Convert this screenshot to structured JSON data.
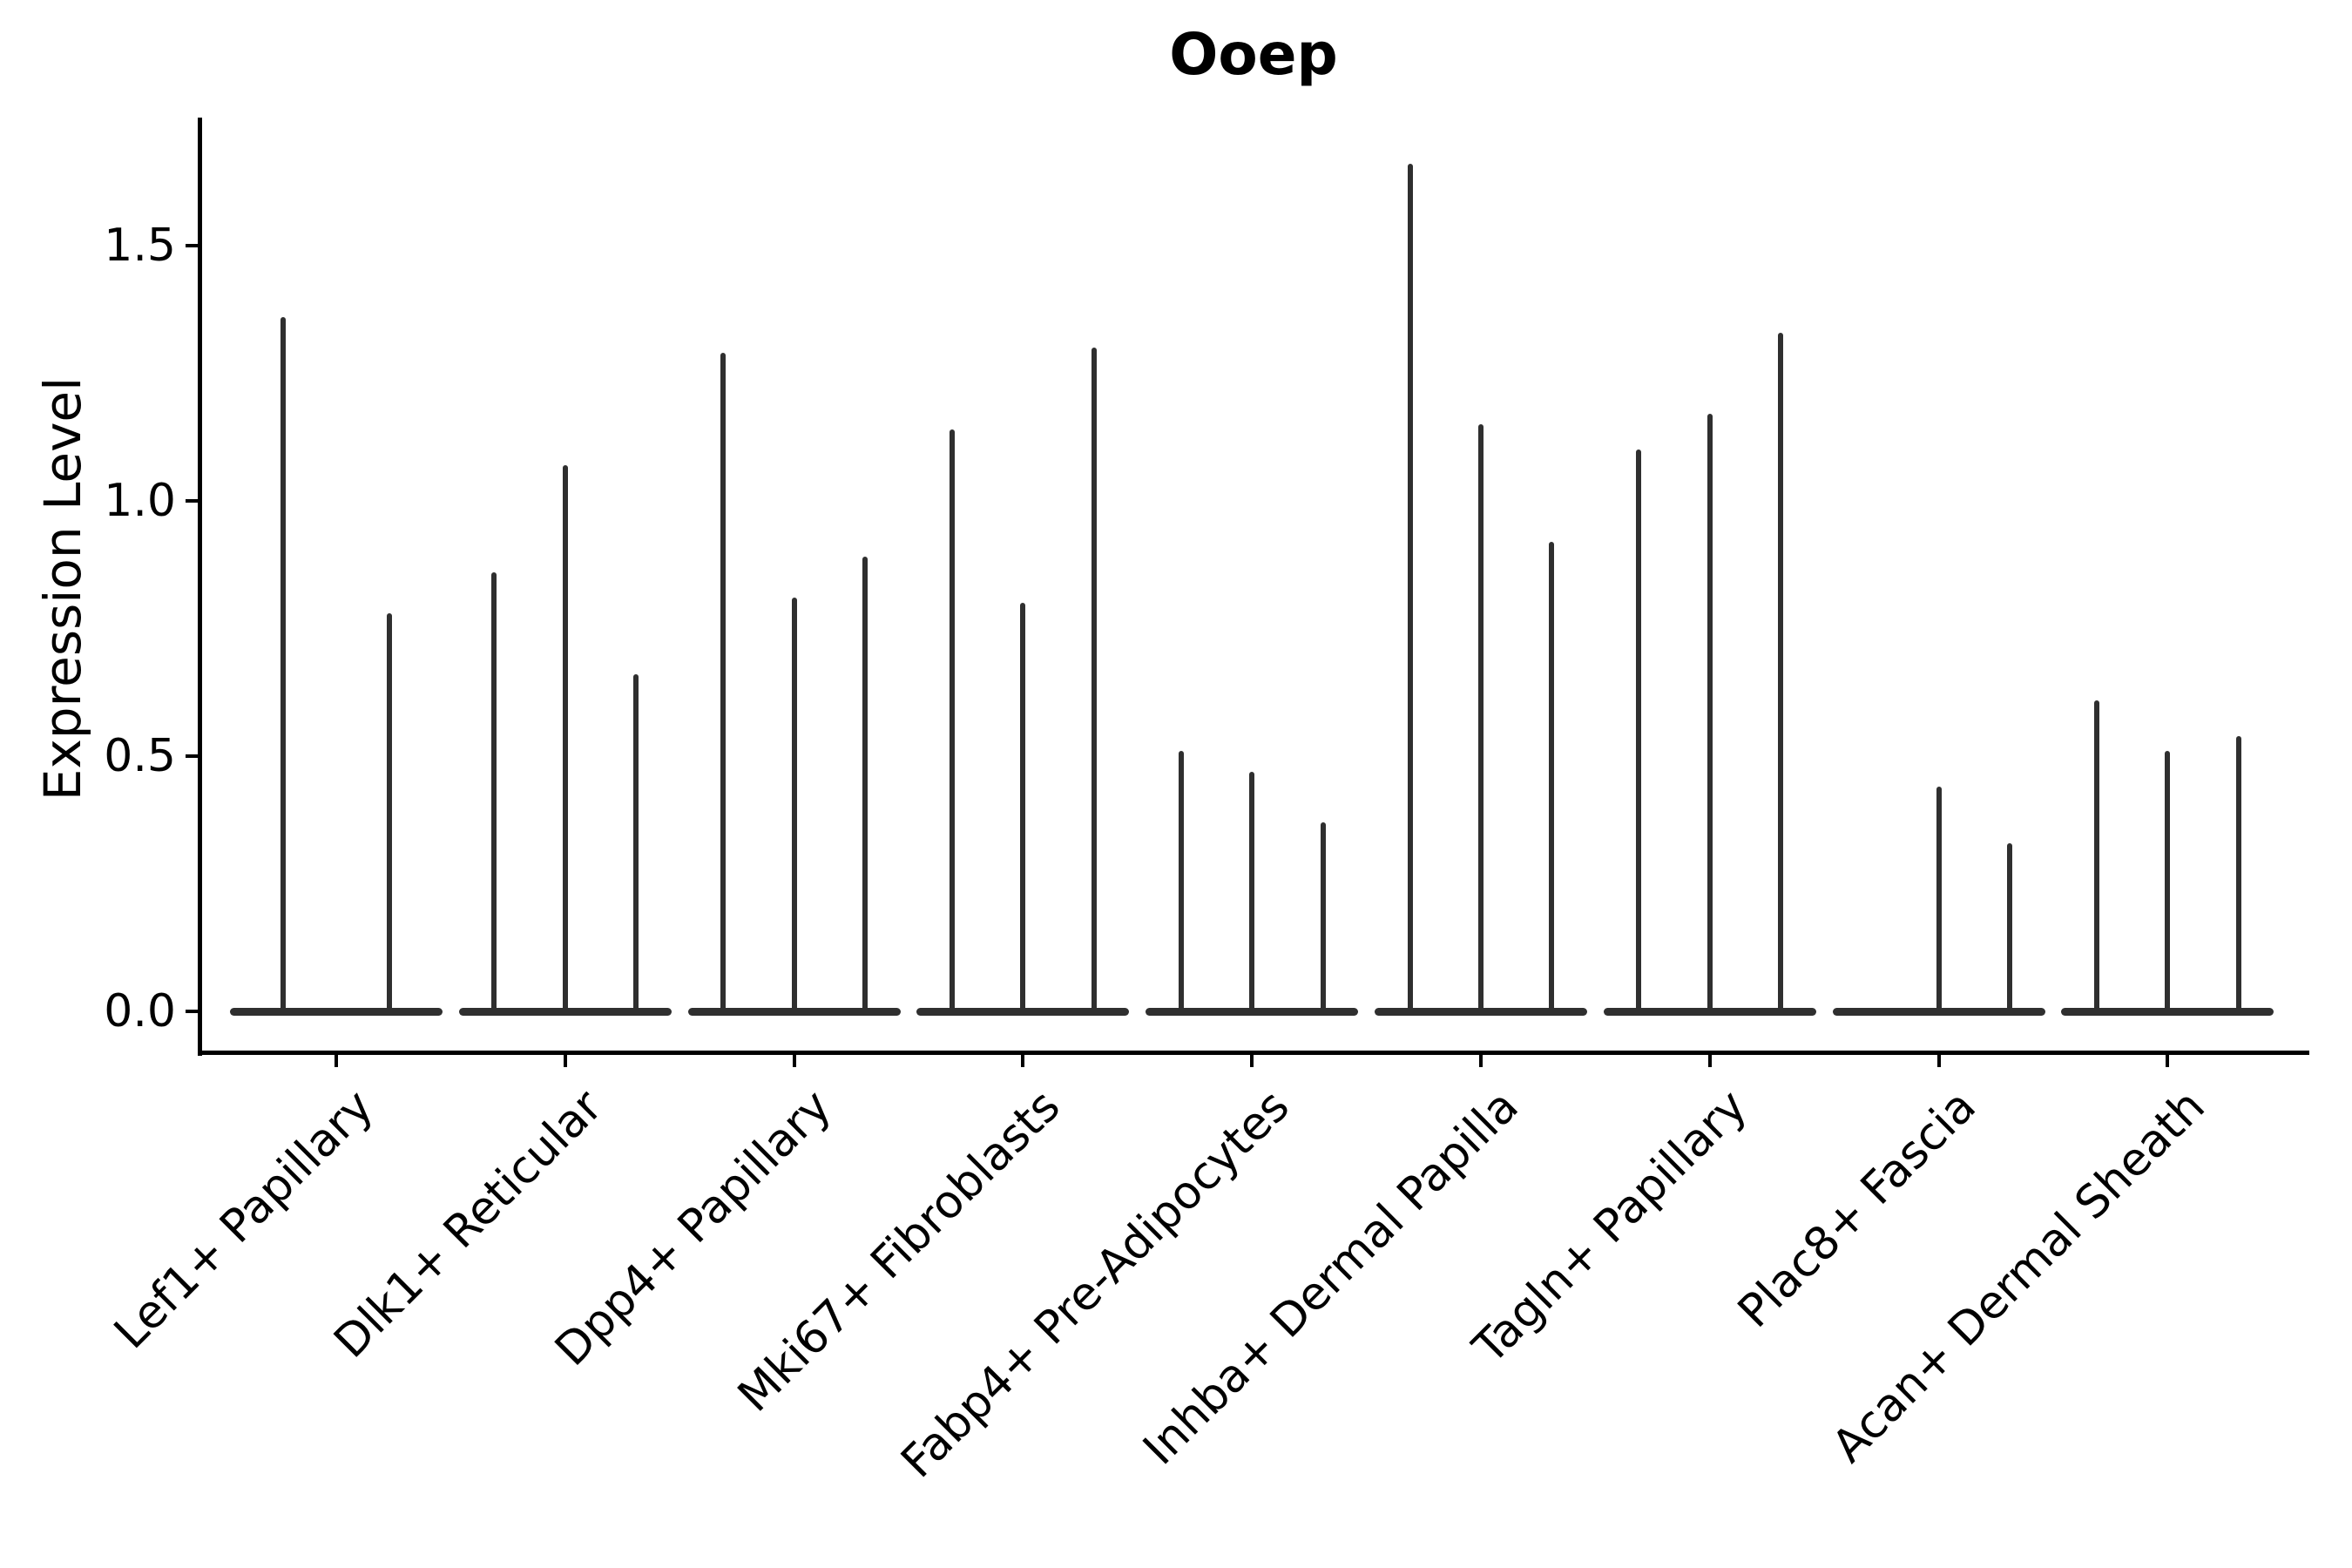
{
  "title": "Ooep",
  "y_axis": {
    "label": "Expression Level",
    "tick_labels": [
      "0.0",
      "0.5",
      "1.0",
      "1.5"
    ],
    "tick_values": [
      0.0,
      0.5,
      1.0,
      1.5
    ]
  },
  "chart_data": {
    "type": "violin",
    "title": "Ooep",
    "xlabel": "",
    "ylabel": "Expression Level",
    "ylim": [
      -0.08,
      1.75
    ],
    "yticks": [
      0.0,
      0.5,
      1.0,
      1.5
    ],
    "grid": false,
    "legend": "none",
    "style_note": "sparse single-cell expression: each violin collapses to a flat bar at 0 with a thin vertical spike up to its max value",
    "categories": [
      "Lef1+ Papillary",
      "Dlk1+ Reticular",
      "Dpp4+ Papillary",
      "Mki67+ Fibroblasts",
      "Fabp4+ Pre-Adipocytes",
      "Inhba+ Dermal Papilla",
      "Tagln+ Papillary",
      "Plac8+ Fascia",
      "Acan+ Dermal Sheath"
    ],
    "groups": [
      {
        "category": "Lef1+ Papillary",
        "violin_max": [
          1.36,
          0.78
        ]
      },
      {
        "category": "Dlk1+ Reticular",
        "violin_max": [
          0.86,
          1.07,
          0.66
        ]
      },
      {
        "category": "Dpp4+ Papillary",
        "violin_max": [
          1.29,
          0.81,
          0.89
        ]
      },
      {
        "category": "Mki67+ Fibroblasts",
        "violin_max": [
          1.14,
          0.8,
          1.3
        ]
      },
      {
        "category": "Fabp4+ Pre-Adipocytes",
        "violin_max": [
          0.51,
          0.47,
          0.37
        ]
      },
      {
        "category": "Inhba+ Dermal Papilla",
        "violin_max": [
          1.66,
          1.15,
          0.92
        ]
      },
      {
        "category": "Tagln+ Papillary",
        "violin_max": [
          1.1,
          1.17,
          1.33
        ]
      },
      {
        "category": "Plac8+ Fascia",
        "violin_max": [
          0.0,
          0.44,
          0.33
        ]
      },
      {
        "category": "Acan+ Dermal Sheath",
        "violin_max": [
          0.61,
          0.51,
          0.54
        ]
      }
    ],
    "colors": {
      "violin_line": "#2f2f2f",
      "axis": "#000000",
      "text": "#000000"
    }
  }
}
